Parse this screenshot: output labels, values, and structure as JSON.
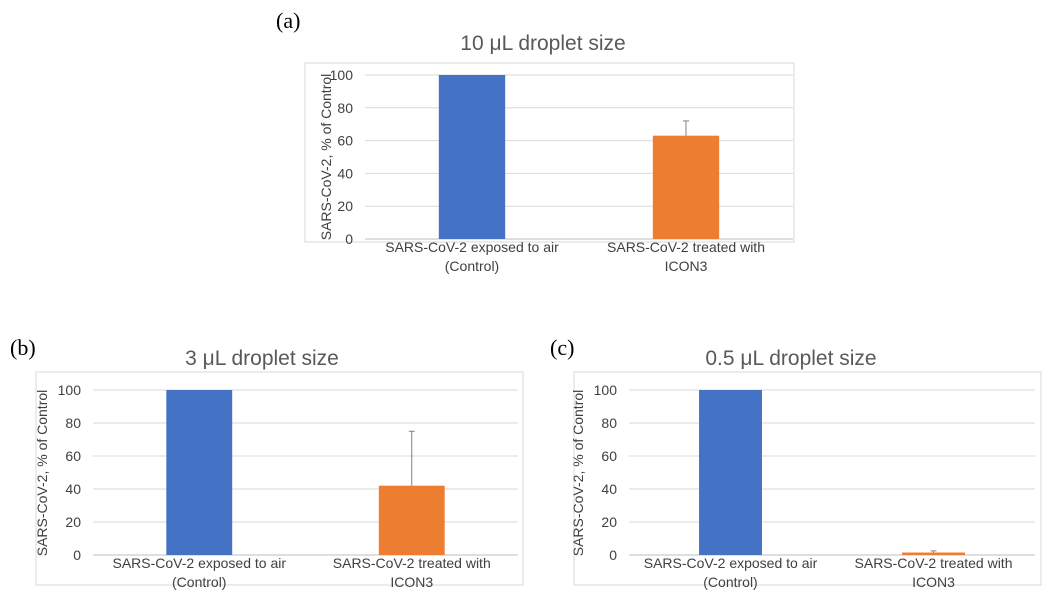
{
  "chart_data": [
    {
      "panel": "(a)",
      "type": "bar",
      "title_prefix": "10 ",
      "title_unit": "μL droplet size",
      "ylabel": "SARS-CoV-2, % of Control",
      "ylim": [
        0,
        100
      ],
      "yticks": [
        "0",
        "20",
        "40",
        "60",
        "80",
        "100"
      ],
      "categories": [
        [
          "SARS-CoV-2 exposed to air",
          "(Control)"
        ],
        [
          "SARS-CoV-2 treated with",
          "ICON3"
        ]
      ],
      "values": [
        100,
        63
      ],
      "errors": [
        0,
        9
      ],
      "colors": [
        "#4472C4",
        "#ED7D31"
      ],
      "grid": true
    },
    {
      "panel": "(b)",
      "type": "bar",
      "title_prefix": "3 ",
      "title_unit": "μL droplet size",
      "ylabel": "SARS-CoV-2, % of Control",
      "ylim": [
        0,
        100
      ],
      "yticks": [
        "0",
        "20",
        "40",
        "60",
        "80",
        "100"
      ],
      "categories": [
        [
          "SARS-CoV-2 exposed to air",
          "(Control)"
        ],
        [
          "SARS-CoV-2 treated with",
          "ICON3"
        ]
      ],
      "values": [
        100,
        42
      ],
      "errors": [
        0,
        33
      ],
      "colors": [
        "#4472C4",
        "#ED7D31"
      ],
      "grid": true
    },
    {
      "panel": "(c)",
      "type": "bar",
      "title_prefix": "0.5 ",
      "title_unit": "μL droplet size",
      "ylabel": "SARS-CoV-2, % of Control",
      "ylim": [
        0,
        100
      ],
      "yticks": [
        "0",
        "20",
        "40",
        "60",
        "80",
        "100"
      ],
      "categories": [
        [
          "SARS-CoV-2 exposed to air",
          "(Control)"
        ],
        [
          "SARS-CoV-2 treated with",
          "ICON3"
        ]
      ],
      "values": [
        100,
        1.5
      ],
      "errors": [
        0,
        1
      ],
      "colors": [
        "#4472C4",
        "#ED7D31"
      ],
      "grid": true
    }
  ]
}
